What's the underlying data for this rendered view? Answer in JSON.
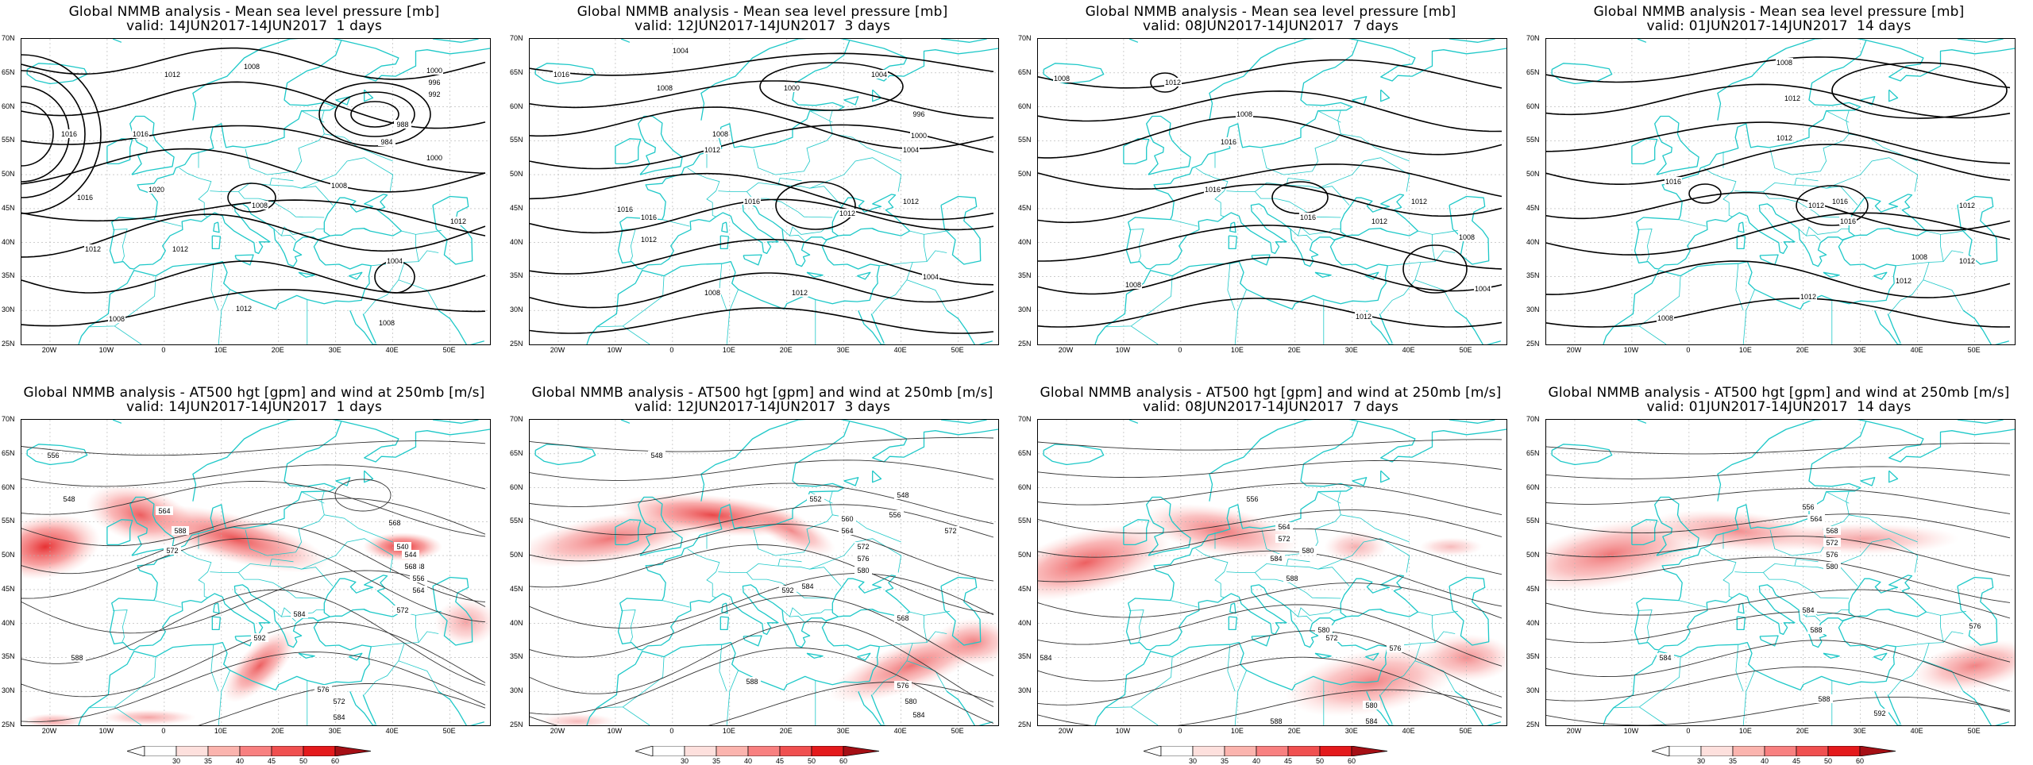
{
  "panels": [
    {
      "line1": "Global NMMB analysis - Mean sea level pressure [mb]",
      "line2": "valid: 14JUN2017-14JUN2017  1 days",
      "type": "mslp"
    },
    {
      "line1": "Global NMMB analysis - Mean sea level pressure [mb]",
      "line2": "valid: 12JUN2017-14JUN2017  3 days",
      "type": "mslp"
    },
    {
      "line1": "Global NMMB analysis - Mean sea level pressure [mb]",
      "line2": "valid: 08JUN2017-14JUN2017  7 days",
      "type": "mslp"
    },
    {
      "line1": "Global NMMB analysis - Mean sea level pressure [mb]",
      "line2": "valid: 01JUN2017-14JUN2017  14 days",
      "type": "mslp"
    },
    {
      "line1": "Global NMMB analysis - AT500 hgt [gpm] and wind at 250mb [m/s]",
      "line2": "valid: 14JUN2017-14JUN2017  1 days",
      "type": "z500"
    },
    {
      "line1": "Global NMMB analysis - AT500 hgt [gpm] and wind at 250mb [m/s]",
      "line2": "valid: 12JUN2017-14JUN2017  3 days",
      "type": "z500"
    },
    {
      "line1": "Global NMMB analysis - AT500 hgt [gpm] and wind at 250mb [m/s]",
      "line2": "valid: 08JUN2017-14JUN2017  7 days",
      "type": "z500"
    },
    {
      "line1": "Global NMMB analysis - AT500 hgt [gpm] and wind at 250mb [m/s]",
      "line2": "valid: 01JUN2017-14JUN2017  14 days",
      "type": "z500"
    }
  ],
  "lat_labels": [
    "70N",
    "65N",
    "60N",
    "55N",
    "50N",
    "45N",
    "40N",
    "35N",
    "30N",
    "25N"
  ],
  "lon_labels": [
    "20W",
    "10W",
    "0",
    "10E",
    "20E",
    "30E",
    "40E",
    "50E"
  ],
  "colorbar_labels": [
    "30",
    "35",
    "40",
    "45",
    "50",
    "60"
  ],
  "colorbar_colors": [
    "#ffffff",
    "#fde0dd",
    "#fbb4ae",
    "#f88080",
    "#f05050",
    "#e41a1c",
    "#a50f15"
  ],
  "colors": {
    "coast": "#1ec8c8",
    "contour": "#000000",
    "jet": "#e41a1c"
  },
  "contour_labels": {
    "p0": [
      "1012",
      "1008",
      "1000",
      "996",
      "992",
      "988",
      "984",
      "1000",
      "1016",
      "1020",
      "1016",
      "1012",
      "1012",
      "1008",
      "1008",
      "1012",
      "1008",
      "1012",
      "1004",
      "1008",
      "1016"
    ],
    "p1": [
      "1004",
      "1008",
      "1000",
      "1004",
      "996",
      "1000",
      "1004",
      "1008",
      "1012",
      "1016",
      "1016",
      "1012",
      "1012",
      "1012",
      "1008",
      "1012",
      "1004",
      "1016",
      "1016"
    ],
    "p2": [
      "1008",
      "1012",
      "1008",
      "1016",
      "1016",
      "1012",
      "1012",
      "1008",
      "1016",
      "1004",
      "1012",
      "1008"
    ],
    "p3": [
      "1008",
      "1012",
      "1012",
      "1016",
      "1012",
      "1016",
      "1016",
      "1012",
      "1008",
      "1012",
      "1012",
      "1008",
      "1012"
    ],
    "p4": [
      "556",
      "548",
      "564",
      "588",
      "572",
      "568",
      "540",
      "544",
      "548",
      "556",
      "564",
      "572",
      "584",
      "592",
      "568",
      "576",
      "572",
      "584",
      "588"
    ],
    "p5": [
      "548",
      "552",
      "560",
      "564",
      "572",
      "576",
      "580",
      "584",
      "592",
      "568",
      "576",
      "580",
      "584",
      "588",
      "548",
      "556",
      "572",
      "588"
    ],
    "p6": [
      "556",
      "564",
      "572",
      "580",
      "584",
      "588",
      "580",
      "584",
      "572",
      "576",
      "580",
      "584",
      "588"
    ],
    "p7": [
      "556",
      "564",
      "568",
      "572",
      "576",
      "580",
      "584",
      "588",
      "584",
      "576",
      "588",
      "592"
    ]
  }
}
